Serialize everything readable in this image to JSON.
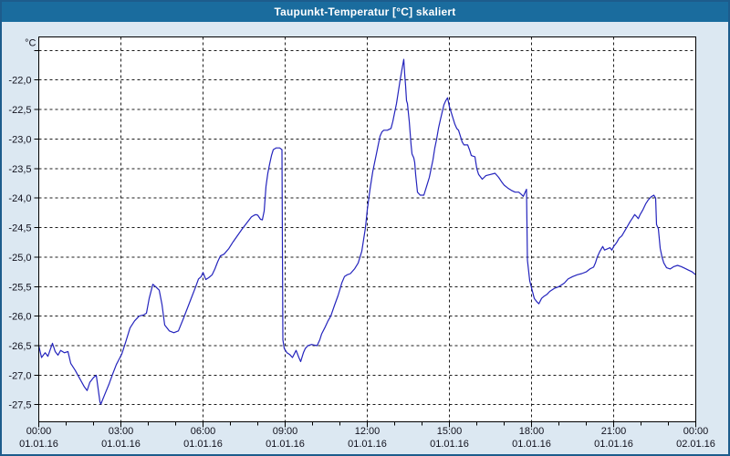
{
  "title": "Taupunkt-Temperatur [°C] skaliert",
  "colors": {
    "titlebar": "#1a6c9e",
    "window_border": "#1d5c8c",
    "margin_bg": "#dce8f2",
    "plot_bg": "#ffffff",
    "grid": "#1c1c1c",
    "axis": "#000000",
    "text": "#10101c",
    "line": "#2424bd"
  },
  "chart_data": {
    "type": "line",
    "title": "Taupunkt-Temperatur [°C] skaliert",
    "y_unit_label": "°C",
    "ylabel": "Taupunkt-Temperatur [°C]",
    "grid": true,
    "legend": "none",
    "ylim": [
      -27.79,
      -21.27
    ],
    "x_range_hours": [
      0,
      24
    ],
    "x_minor_tick_every_hours": 1,
    "y_ticks": [
      {
        "value": -21.5,
        "label": ""
      },
      {
        "value": -22.0,
        "label": "-22,0"
      },
      {
        "value": -22.5,
        "label": "-22,5"
      },
      {
        "value": -23.0,
        "label": "-23,0"
      },
      {
        "value": -23.5,
        "label": "-23,5"
      },
      {
        "value": -24.0,
        "label": "-24,0"
      },
      {
        "value": -24.5,
        "label": "-24,5"
      },
      {
        "value": -25.0,
        "label": "-25,0"
      },
      {
        "value": -25.5,
        "label": "-25,5"
      },
      {
        "value": -26.0,
        "label": "-26,0"
      },
      {
        "value": -26.5,
        "label": "-26,5"
      },
      {
        "value": -27.0,
        "label": "-27,0"
      },
      {
        "value": -27.5,
        "label": "-27,5"
      }
    ],
    "x_ticks": [
      {
        "hour": 0,
        "time": "00:00",
        "date": "01.01.16"
      },
      {
        "hour": 3,
        "time": "03:00",
        "date": "01.01.16"
      },
      {
        "hour": 6,
        "time": "06:00",
        "date": "01.01.16"
      },
      {
        "hour": 9,
        "time": "09:00",
        "date": "01.01.16"
      },
      {
        "hour": 12,
        "time": "12:00",
        "date": "01.01.16"
      },
      {
        "hour": 15,
        "time": "15:00",
        "date": "01.01.16"
      },
      {
        "hour": 18,
        "time": "18:00",
        "date": "01.01.16"
      },
      {
        "hour": 21,
        "time": "21:00",
        "date": "01.01.16"
      },
      {
        "hour": 24,
        "time": "00:00",
        "date": "02.01.16"
      }
    ],
    "series": [
      {
        "name": "Taupunkt-Temperatur",
        "color": "#2424bd",
        "points_format": "[minutes_since_00:00, temp_C]",
        "points": [
          [
            0,
            -26.5
          ],
          [
            6,
            -26.7
          ],
          [
            14,
            -26.62
          ],
          [
            20,
            -26.68
          ],
          [
            30,
            -26.46
          ],
          [
            36,
            -26.6
          ],
          [
            42,
            -26.66
          ],
          [
            48,
            -26.58
          ],
          [
            56,
            -26.62
          ],
          [
            64,
            -26.6
          ],
          [
            70,
            -26.8
          ],
          [
            80,
            -26.92
          ],
          [
            90,
            -27.06
          ],
          [
            100,
            -27.2
          ],
          [
            106,
            -27.26
          ],
          [
            112,
            -27.12
          ],
          [
            120,
            -27.04
          ],
          [
            126,
            -27.0
          ],
          [
            134,
            -27.45
          ],
          [
            136,
            -27.49
          ],
          [
            146,
            -27.3
          ],
          [
            154,
            -27.15
          ],
          [
            162,
            -26.98
          ],
          [
            170,
            -26.82
          ],
          [
            178,
            -26.7
          ],
          [
            182,
            -26.64
          ],
          [
            190,
            -26.45
          ],
          [
            200,
            -26.2
          ],
          [
            210,
            -26.08
          ],
          [
            220,
            -26.0
          ],
          [
            230,
            -25.98
          ],
          [
            236,
            -25.95
          ],
          [
            242,
            -25.7
          ],
          [
            250,
            -25.46
          ],
          [
            256,
            -25.5
          ],
          [
            264,
            -25.56
          ],
          [
            270,
            -25.8
          ],
          [
            276,
            -26.15
          ],
          [
            286,
            -26.25
          ],
          [
            296,
            -26.28
          ],
          [
            306,
            -26.25
          ],
          [
            316,
            -26.06
          ],
          [
            326,
            -25.86
          ],
          [
            336,
            -25.66
          ],
          [
            344,
            -25.5
          ],
          [
            350,
            -25.37
          ],
          [
            356,
            -25.33
          ],
          [
            360,
            -25.26
          ],
          [
            366,
            -25.38
          ],
          [
            372,
            -25.35
          ],
          [
            380,
            -25.3
          ],
          [
            386,
            -25.2
          ],
          [
            392,
            -25.08
          ],
          [
            398,
            -24.98
          ],
          [
            406,
            -24.95
          ],
          [
            416,
            -24.86
          ],
          [
            426,
            -24.74
          ],
          [
            436,
            -24.63
          ],
          [
            446,
            -24.52
          ],
          [
            456,
            -24.42
          ],
          [
            466,
            -24.32
          ],
          [
            472,
            -24.29
          ],
          [
            476,
            -24.28
          ],
          [
            480,
            -24.29
          ],
          [
            486,
            -24.36
          ],
          [
            490,
            -24.37
          ],
          [
            494,
            -24.22
          ],
          [
            498,
            -23.8
          ],
          [
            502,
            -23.58
          ],
          [
            506,
            -23.42
          ],
          [
            510,
            -23.28
          ],
          [
            514,
            -23.18
          ],
          [
            520,
            -23.15
          ],
          [
            528,
            -23.15
          ],
          [
            533,
            -23.18
          ],
          [
            535,
            -26.4
          ],
          [
            538,
            -26.55
          ],
          [
            544,
            -26.62
          ],
          [
            550,
            -26.65
          ],
          [
            556,
            -26.7
          ],
          [
            564,
            -26.58
          ],
          [
            570,
            -26.7
          ],
          [
            574,
            -26.77
          ],
          [
            580,
            -26.62
          ],
          [
            584,
            -26.55
          ],
          [
            590,
            -26.5
          ],
          [
            598,
            -26.48
          ],
          [
            604,
            -26.49
          ],
          [
            610,
            -26.5
          ],
          [
            616,
            -26.4
          ],
          [
            620,
            -26.3
          ],
          [
            628,
            -26.18
          ],
          [
            634,
            -26.08
          ],
          [
            640,
            -26.0
          ],
          [
            648,
            -25.82
          ],
          [
            656,
            -25.65
          ],
          [
            660,
            -25.55
          ],
          [
            664,
            -25.44
          ],
          [
            670,
            -25.33
          ],
          [
            676,
            -25.3
          ],
          [
            683,
            -25.28
          ],
          [
            692,
            -25.2
          ],
          [
            700,
            -25.1
          ],
          [
            704,
            -25.0
          ],
          [
            708,
            -24.9
          ],
          [
            712,
            -24.7
          ],
          [
            716,
            -24.5
          ],
          [
            720,
            -24.2
          ],
          [
            726,
            -23.85
          ],
          [
            732,
            -23.55
          ],
          [
            736,
            -23.4
          ],
          [
            740,
            -23.25
          ],
          [
            744,
            -23.1
          ],
          [
            748,
            -22.95
          ],
          [
            752,
            -22.88
          ],
          [
            756,
            -22.85
          ],
          [
            764,
            -22.85
          ],
          [
            772,
            -22.82
          ],
          [
            776,
            -22.7
          ],
          [
            780,
            -22.55
          ],
          [
            784,
            -22.4
          ],
          [
            788,
            -22.2
          ],
          [
            792,
            -22.0
          ],
          [
            796,
            -21.82
          ],
          [
            800,
            -21.65
          ],
          [
            802,
            -21.9
          ],
          [
            804,
            -22.1
          ],
          [
            806,
            -22.35
          ],
          [
            808,
            -22.4
          ],
          [
            812,
            -22.7
          ],
          [
            816,
            -23.1
          ],
          [
            818,
            -23.25
          ],
          [
            822,
            -23.32
          ],
          [
            824,
            -23.4
          ],
          [
            826,
            -23.6
          ],
          [
            828,
            -23.75
          ],
          [
            830,
            -23.9
          ],
          [
            836,
            -23.95
          ],
          [
            844,
            -23.95
          ],
          [
            850,
            -23.8
          ],
          [
            856,
            -23.65
          ],
          [
            860,
            -23.5
          ],
          [
            864,
            -23.35
          ],
          [
            868,
            -23.15
          ],
          [
            872,
            -23.0
          ],
          [
            876,
            -22.82
          ],
          [
            880,
            -22.68
          ],
          [
            884,
            -22.55
          ],
          [
            888,
            -22.42
          ],
          [
            892,
            -22.35
          ],
          [
            896,
            -22.3
          ],
          [
            900,
            -22.45
          ],
          [
            904,
            -22.55
          ],
          [
            908,
            -22.65
          ],
          [
            912,
            -22.75
          ],
          [
            916,
            -22.82
          ],
          [
            920,
            -22.85
          ],
          [
            924,
            -22.95
          ],
          [
            928,
            -23.05
          ],
          [
            932,
            -23.1
          ],
          [
            940,
            -23.1
          ],
          [
            944,
            -23.18
          ],
          [
            948,
            -23.28
          ],
          [
            956,
            -23.3
          ],
          [
            960,
            -23.5
          ],
          [
            964,
            -23.6
          ],
          [
            972,
            -23.68
          ],
          [
            980,
            -23.62
          ],
          [
            990,
            -23.6
          ],
          [
            1000,
            -23.58
          ],
          [
            1008,
            -23.65
          ],
          [
            1014,
            -23.72
          ],
          [
            1020,
            -23.78
          ],
          [
            1028,
            -23.83
          ],
          [
            1036,
            -23.87
          ],
          [
            1044,
            -23.9
          ],
          [
            1052,
            -23.9
          ],
          [
            1058,
            -23.94
          ],
          [
            1062,
            -23.97
          ],
          [
            1066,
            -23.9
          ],
          [
            1069,
            -23.85
          ],
          [
            1071,
            -25.05
          ],
          [
            1076,
            -25.4
          ],
          [
            1082,
            -25.58
          ],
          [
            1086,
            -25.7
          ],
          [
            1092,
            -25.76
          ],
          [
            1096,
            -25.79
          ],
          [
            1102,
            -25.7
          ],
          [
            1108,
            -25.66
          ],
          [
            1114,
            -25.63
          ],
          [
            1120,
            -25.58
          ],
          [
            1130,
            -25.53
          ],
          [
            1140,
            -25.5
          ],
          [
            1152,
            -25.44
          ],
          [
            1160,
            -25.37
          ],
          [
            1170,
            -25.33
          ],
          [
            1180,
            -25.3
          ],
          [
            1190,
            -25.28
          ],
          [
            1200,
            -25.25
          ],
          [
            1208,
            -25.2
          ],
          [
            1216,
            -25.17
          ],
          [
            1220,
            -25.1
          ],
          [
            1224,
            -25.0
          ],
          [
            1230,
            -24.9
          ],
          [
            1236,
            -24.82
          ],
          [
            1240,
            -24.88
          ],
          [
            1246,
            -24.86
          ],
          [
            1252,
            -24.84
          ],
          [
            1256,
            -24.88
          ],
          [
            1260,
            -24.82
          ],
          [
            1266,
            -24.76
          ],
          [
            1272,
            -24.68
          ],
          [
            1278,
            -24.64
          ],
          [
            1284,
            -24.56
          ],
          [
            1290,
            -24.48
          ],
          [
            1296,
            -24.4
          ],
          [
            1302,
            -24.33
          ],
          [
            1306,
            -24.28
          ],
          [
            1310,
            -24.31
          ],
          [
            1314,
            -24.35
          ],
          [
            1318,
            -24.28
          ],
          [
            1324,
            -24.2
          ],
          [
            1330,
            -24.1
          ],
          [
            1336,
            -24.03
          ],
          [
            1342,
            -23.98
          ],
          [
            1348,
            -23.95
          ],
          [
            1352,
            -24.0
          ],
          [
            1354,
            -24.45
          ],
          [
            1358,
            -24.52
          ],
          [
            1362,
            -24.85
          ],
          [
            1366,
            -25.0
          ],
          [
            1370,
            -25.1
          ],
          [
            1376,
            -25.18
          ],
          [
            1384,
            -25.2
          ],
          [
            1392,
            -25.16
          ],
          [
            1400,
            -25.14
          ],
          [
            1408,
            -25.16
          ],
          [
            1416,
            -25.19
          ],
          [
            1424,
            -25.22
          ],
          [
            1432,
            -25.25
          ],
          [
            1440,
            -25.3
          ]
        ]
      }
    ]
  }
}
